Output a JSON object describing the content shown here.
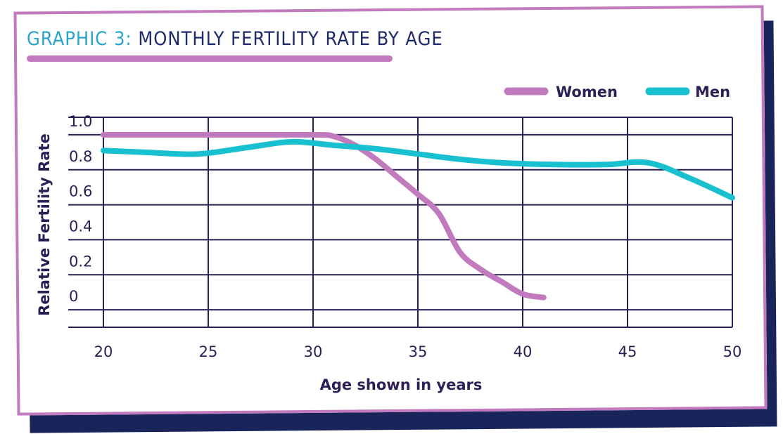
{
  "title_label": "GRAPHIC 3:",
  "title_text": "MONTHLY FERTILITY RATE BY AGE",
  "colors": {
    "women": "#c07abd",
    "men": "#19c0d0",
    "grid": "#2c1f55",
    "title": "#1f2a6b",
    "title_label": "#2aa3cf",
    "shadow": "#18245a"
  },
  "chart_data": {
    "type": "line",
    "title": "MONTHLY FERTILITY RATE BY AGE",
    "xlabel": "Age shown in years",
    "ylabel": "Relative Fertility Rate",
    "xlim": [
      20,
      50
    ],
    "ylim": [
      -0.1,
      1.1
    ],
    "x_ticks": [
      20,
      25,
      30,
      35,
      40,
      45,
      50
    ],
    "y_ticks": [
      {
        "label": "1.0",
        "value": 1.0
      },
      {
        "label": "0.8",
        "value": 0.8
      },
      {
        "label": "0.6",
        "value": 0.6
      },
      {
        "label": "0.4",
        "value": 0.4
      },
      {
        "label": "0.2",
        "value": 0.2
      },
      {
        "label": "0",
        "value": 0.0
      }
    ],
    "grid": true,
    "legend_position": "top-right",
    "series": [
      {
        "name": "Women",
        "x": [
          20,
          25,
          30,
          31,
          32,
          33,
          34,
          35,
          36,
          37,
          38,
          39,
          40,
          41
        ],
        "y": [
          1.0,
          1.0,
          1.0,
          0.99,
          0.94,
          0.86,
          0.76,
          0.66,
          0.55,
          0.33,
          0.23,
          0.16,
          0.09,
          0.07
        ]
      },
      {
        "name": "Men",
        "x": [
          20,
          22,
          24.5,
          27,
          29,
          31,
          33,
          35,
          37,
          39,
          41.5,
          44,
          46,
          48,
          50
        ],
        "y": [
          0.91,
          0.9,
          0.89,
          0.93,
          0.96,
          0.94,
          0.92,
          0.89,
          0.86,
          0.84,
          0.83,
          0.83,
          0.84,
          0.75,
          0.64
        ]
      }
    ]
  }
}
